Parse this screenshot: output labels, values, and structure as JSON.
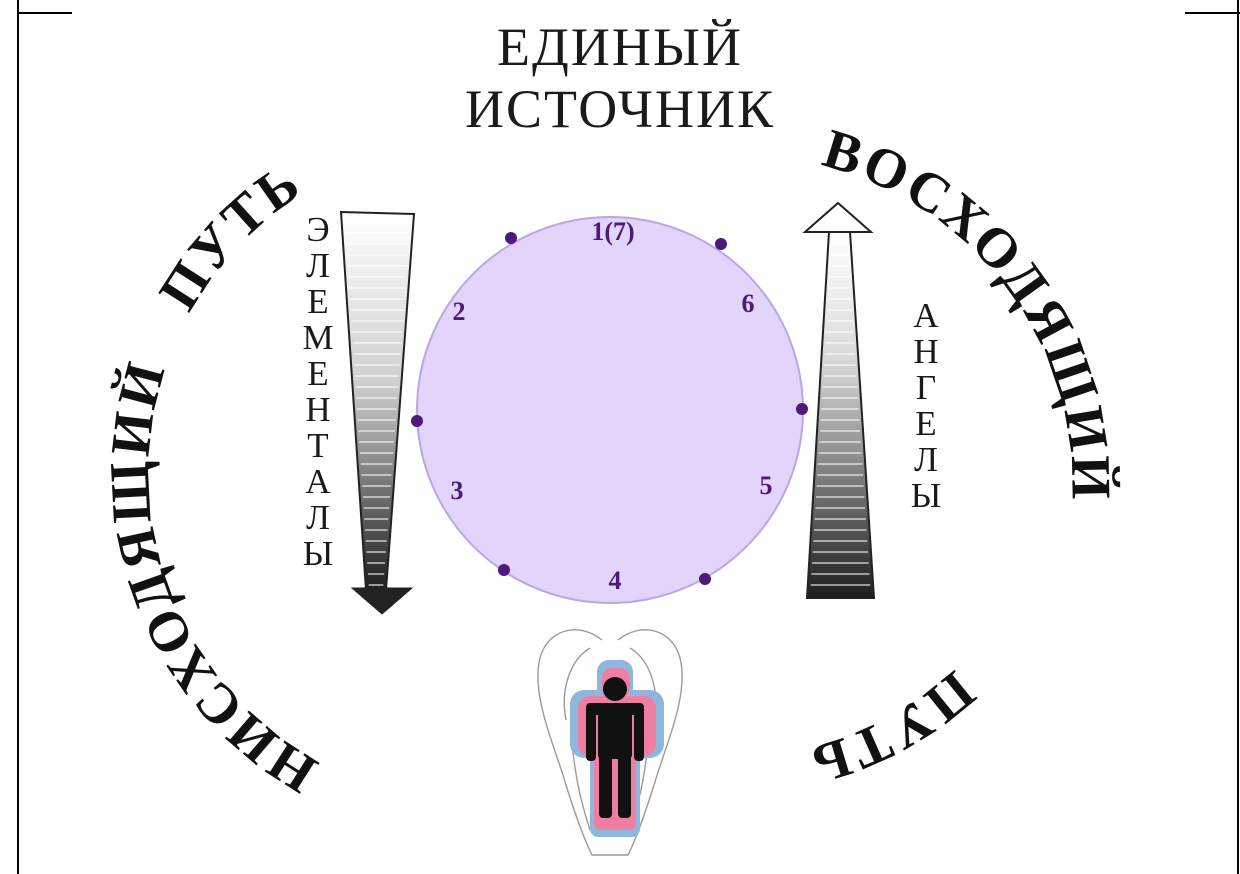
{
  "title": {
    "line1": "ЕДИНЫЙ",
    "line2": "ИСТОЧНИК"
  },
  "arc_labels": {
    "descending_word1": "НИСХОДЯЩИЙ",
    "descending_word2": "ПУТЬ",
    "ascending_word1": "ВОСХОДЯЩИЙ",
    "ascending_word2": "ПУТЬ"
  },
  "left_column": [
    "Э",
    "Л",
    "Е",
    "М",
    "Е",
    "Н",
    "Т",
    "А",
    "Л",
    "Ы"
  ],
  "right_column": [
    "А",
    "Н",
    "Г",
    "Е",
    "Л",
    "Ы"
  ],
  "circle_numbers": [
    "1(7)",
    "2",
    "3",
    "4",
    "5",
    "6"
  ],
  "colors": {
    "circle_fill": "#e2d4fa",
    "circle_stroke": "#b9a6e6",
    "number_color": "#4b1a7a",
    "dot_color": "#4b1a7a",
    "aura_blue": "#8fb6dc",
    "aura_pink": "#ee7fa3",
    "figure": "#111111"
  },
  "icons": [
    "angel-wings-icon",
    "human-figure-icon",
    "down-arrow-gradient",
    "up-arrow-gradient"
  ]
}
